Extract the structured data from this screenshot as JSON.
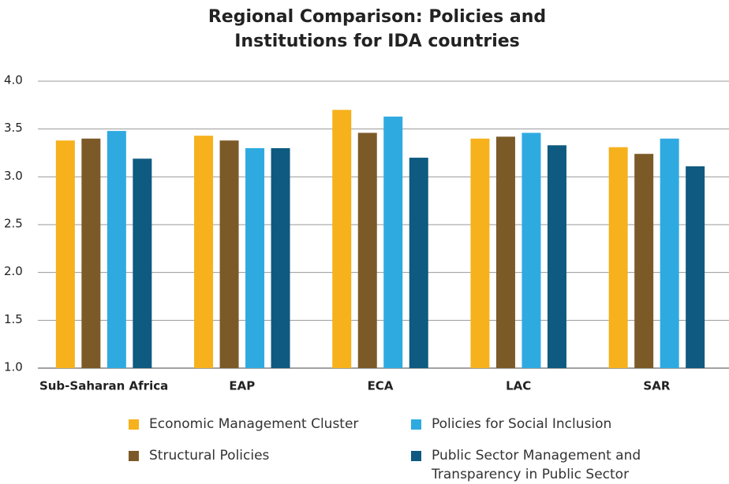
{
  "chart_data": {
    "type": "bar",
    "title": "Regional Comparison: Policies and Institutions for IDA countries",
    "categories": [
      "Sub-Saharan Africa",
      "EAP",
      "ECA",
      "LAC",
      "SAR"
    ],
    "series": [
      {
        "name": "Economic Management Cluster",
        "color": "#f6b11c",
        "values": [
          3.38,
          3.43,
          3.7,
          3.4,
          3.31
        ]
      },
      {
        "name": "Structural Policies",
        "color": "#7c5a28",
        "values": [
          3.4,
          3.38,
          3.46,
          3.42,
          3.24
        ]
      },
      {
        "name": "Policies for Social Inclusion",
        "color": "#2faae1",
        "values": [
          3.48,
          3.3,
          3.63,
          3.46,
          3.4
        ]
      },
      {
        "name": "Public Sector Management and Transparency in Public Sector",
        "color": "#0f5a80",
        "values": [
          3.19,
          3.3,
          3.2,
          3.33,
          3.11
        ]
      }
    ],
    "ylim": [
      1,
      4
    ],
    "yticks": [
      {
        "value": 1,
        "label": "1.0"
      },
      1.5,
      {
        "value": 2,
        "label": "2.0"
      },
      2.5,
      {
        "value": 3,
        "label": "3.0"
      },
      3.5,
      {
        "value": 4,
        "label": "4.0"
      }
    ],
    "grid": true
  }
}
